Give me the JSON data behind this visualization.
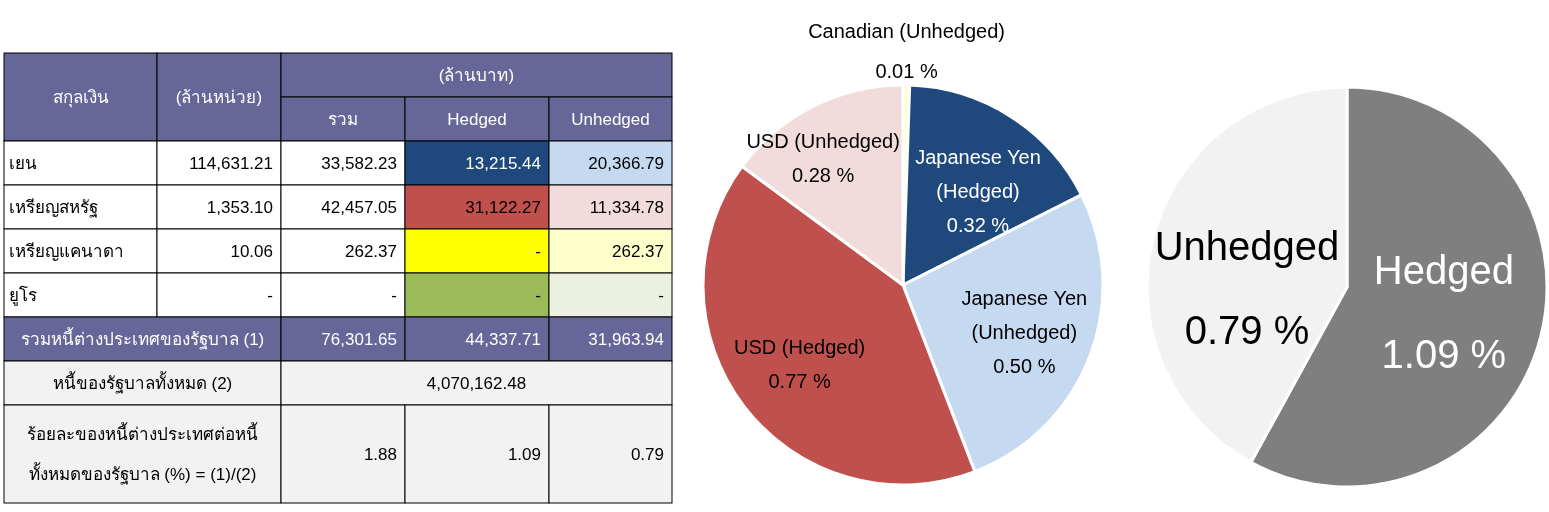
{
  "chart_data": [
    {
      "type": "other",
      "ylabel": "สกุลเงิน",
      "x2label": "(ล้านบาท)",
      "color": "#666699",
      "categories": [
        "(ล้านหน่วย)",
        "รวม",
        "Hedged",
        "Unhedged"
      ],
      "y_categories": [
        "เยน",
        "เหรียญสหรัฐ",
        "เหรียญแคนาดา",
        "ยูโร",
        "รวมหนี้ต่างประเทศของรัฐบาล (1)",
        "หนี้ของรัฐบาลทั้งหมด (2)",
        "ร้อยละของหนี้ต่างประเทศต่อหนี้ทั้งหมดของรัฐบาล (%) = (1)/(2)"
      ],
      "cell_labels": [
        [
          "114,631.21",
          "33,582.23",
          "13,215.44",
          "20,366.79"
        ],
        [
          "1,353.10",
          "42,457.05",
          "31,122.27",
          "11,334.78"
        ],
        [
          "10.06",
          "262.37",
          "-",
          "262.37"
        ],
        [
          "-",
          "-",
          "-",
          "-"
        ],
        [
          null,
          "76,301.65",
          "44,337.71",
          "31,963.94"
        ],
        [
          null,
          "4,070,162.48",
          null,
          null
        ],
        [
          null,
          "1.88",
          "1.09",
          "0.79"
        ]
      ],
      "colors": [
        [
          "#ffffff",
          "#ffffff",
          "#ffffff",
          "#1f497d",
          "#c5d9f1"
        ],
        [
          "#ffffff",
          "#ffffff",
          "#ffffff",
          "#c0504d",
          "#f2dcdb"
        ],
        [
          "#ffffff",
          "#ffffff",
          "#ffffff",
          "#ffff00",
          "#ffffcc"
        ],
        [
          "#ffffff",
          "#ffffff",
          "#ffffff",
          "#9bbb59",
          "#ebf1de"
        ],
        [
          "#666699",
          null,
          "#666699",
          "#666699",
          "#666699"
        ],
        [
          "#f2f2f2",
          null,
          "#f2f2f2",
          null,
          null
        ],
        [
          "#f2f2f2",
          null,
          "#f2f2f2",
          "#f2f2f2",
          "#f2f2f2"
        ]
      ]
    },
    {
      "type": "pie",
      "categories": [
        "Canadian (Unhedged)",
        "Japanese Yen (Hedged)",
        "Japanese Yen (Unhedged)",
        "USD (Hedged)",
        "USD (Unhedged)"
      ],
      "values": [
        0.01,
        0.32,
        0.5,
        0.77,
        0.28
      ],
      "value_labels": [
        "0.01 %",
        "0.32 %",
        "0.50 %",
        "0.77 %",
        "0.28 %"
      ],
      "colors": [
        "#ffffcc",
        "#1f497d",
        "#c5d9f1",
        "#c0504d",
        "#f2dcdb"
      ]
    },
    {
      "type": "pie",
      "categories": [
        "Hedged",
        "Unhedged"
      ],
      "values": [
        1.09,
        0.79
      ],
      "value_labels": [
        "1.09 %",
        "0.79 %"
      ],
      "colors": [
        "#7f7f7f",
        "#f2f2f2"
      ]
    }
  ]
}
